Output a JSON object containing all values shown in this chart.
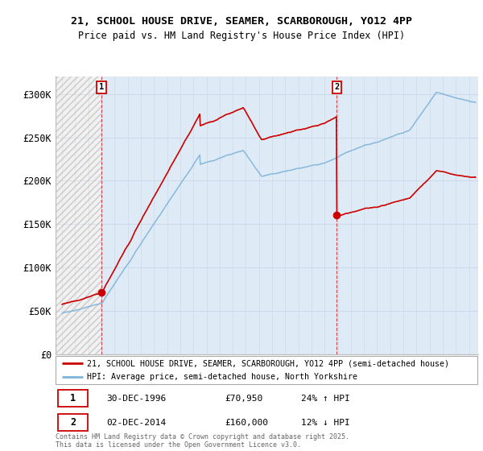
{
  "title1": "21, SCHOOL HOUSE DRIVE, SEAMER, SCARBOROUGH, YO12 4PP",
  "title2": "Price paid vs. HM Land Registry's House Price Index (HPI)",
  "legend_line1": "21, SCHOOL HOUSE DRIVE, SEAMER, SCARBOROUGH, YO12 4PP (semi-detached house)",
  "legend_line2": "HPI: Average price, semi-detached house, North Yorkshire",
  "annotation1_label": "1",
  "annotation1_date": "30-DEC-1996",
  "annotation1_price": "£70,950",
  "annotation1_hpi": "24% ↑ HPI",
  "annotation2_label": "2",
  "annotation2_date": "02-DEC-2014",
  "annotation2_price": "£160,000",
  "annotation2_hpi": "12% ↓ HPI",
  "footer": "Contains HM Land Registry data © Crown copyright and database right 2025.\nThis data is licensed under the Open Government Licence v3.0.",
  "sale1_x": 1996.99,
  "sale1_y": 70950,
  "sale2_x": 2014.92,
  "sale2_y": 160000,
  "vline1_x": 1996.99,
  "vline2_x": 2014.92,
  "hpi_color": "#7fb3d9",
  "price_color": "#cc0000",
  "sale_dot_color": "#cc0000",
  "vline_color": "#cc0000",
  "background_color": "#ffffff",
  "fill_color": "#deeaf5",
  "hatch_color": "#cccccc",
  "ylim": [
    0,
    320000
  ],
  "xlim_start": 1993.5,
  "xlim_end": 2025.7,
  "yticks": [
    0,
    50000,
    100000,
    150000,
    200000,
    250000,
    300000
  ],
  "ytick_labels": [
    "£0",
    "£50K",
    "£100K",
    "£150K",
    "£200K",
    "£250K",
    "£300K"
  ]
}
